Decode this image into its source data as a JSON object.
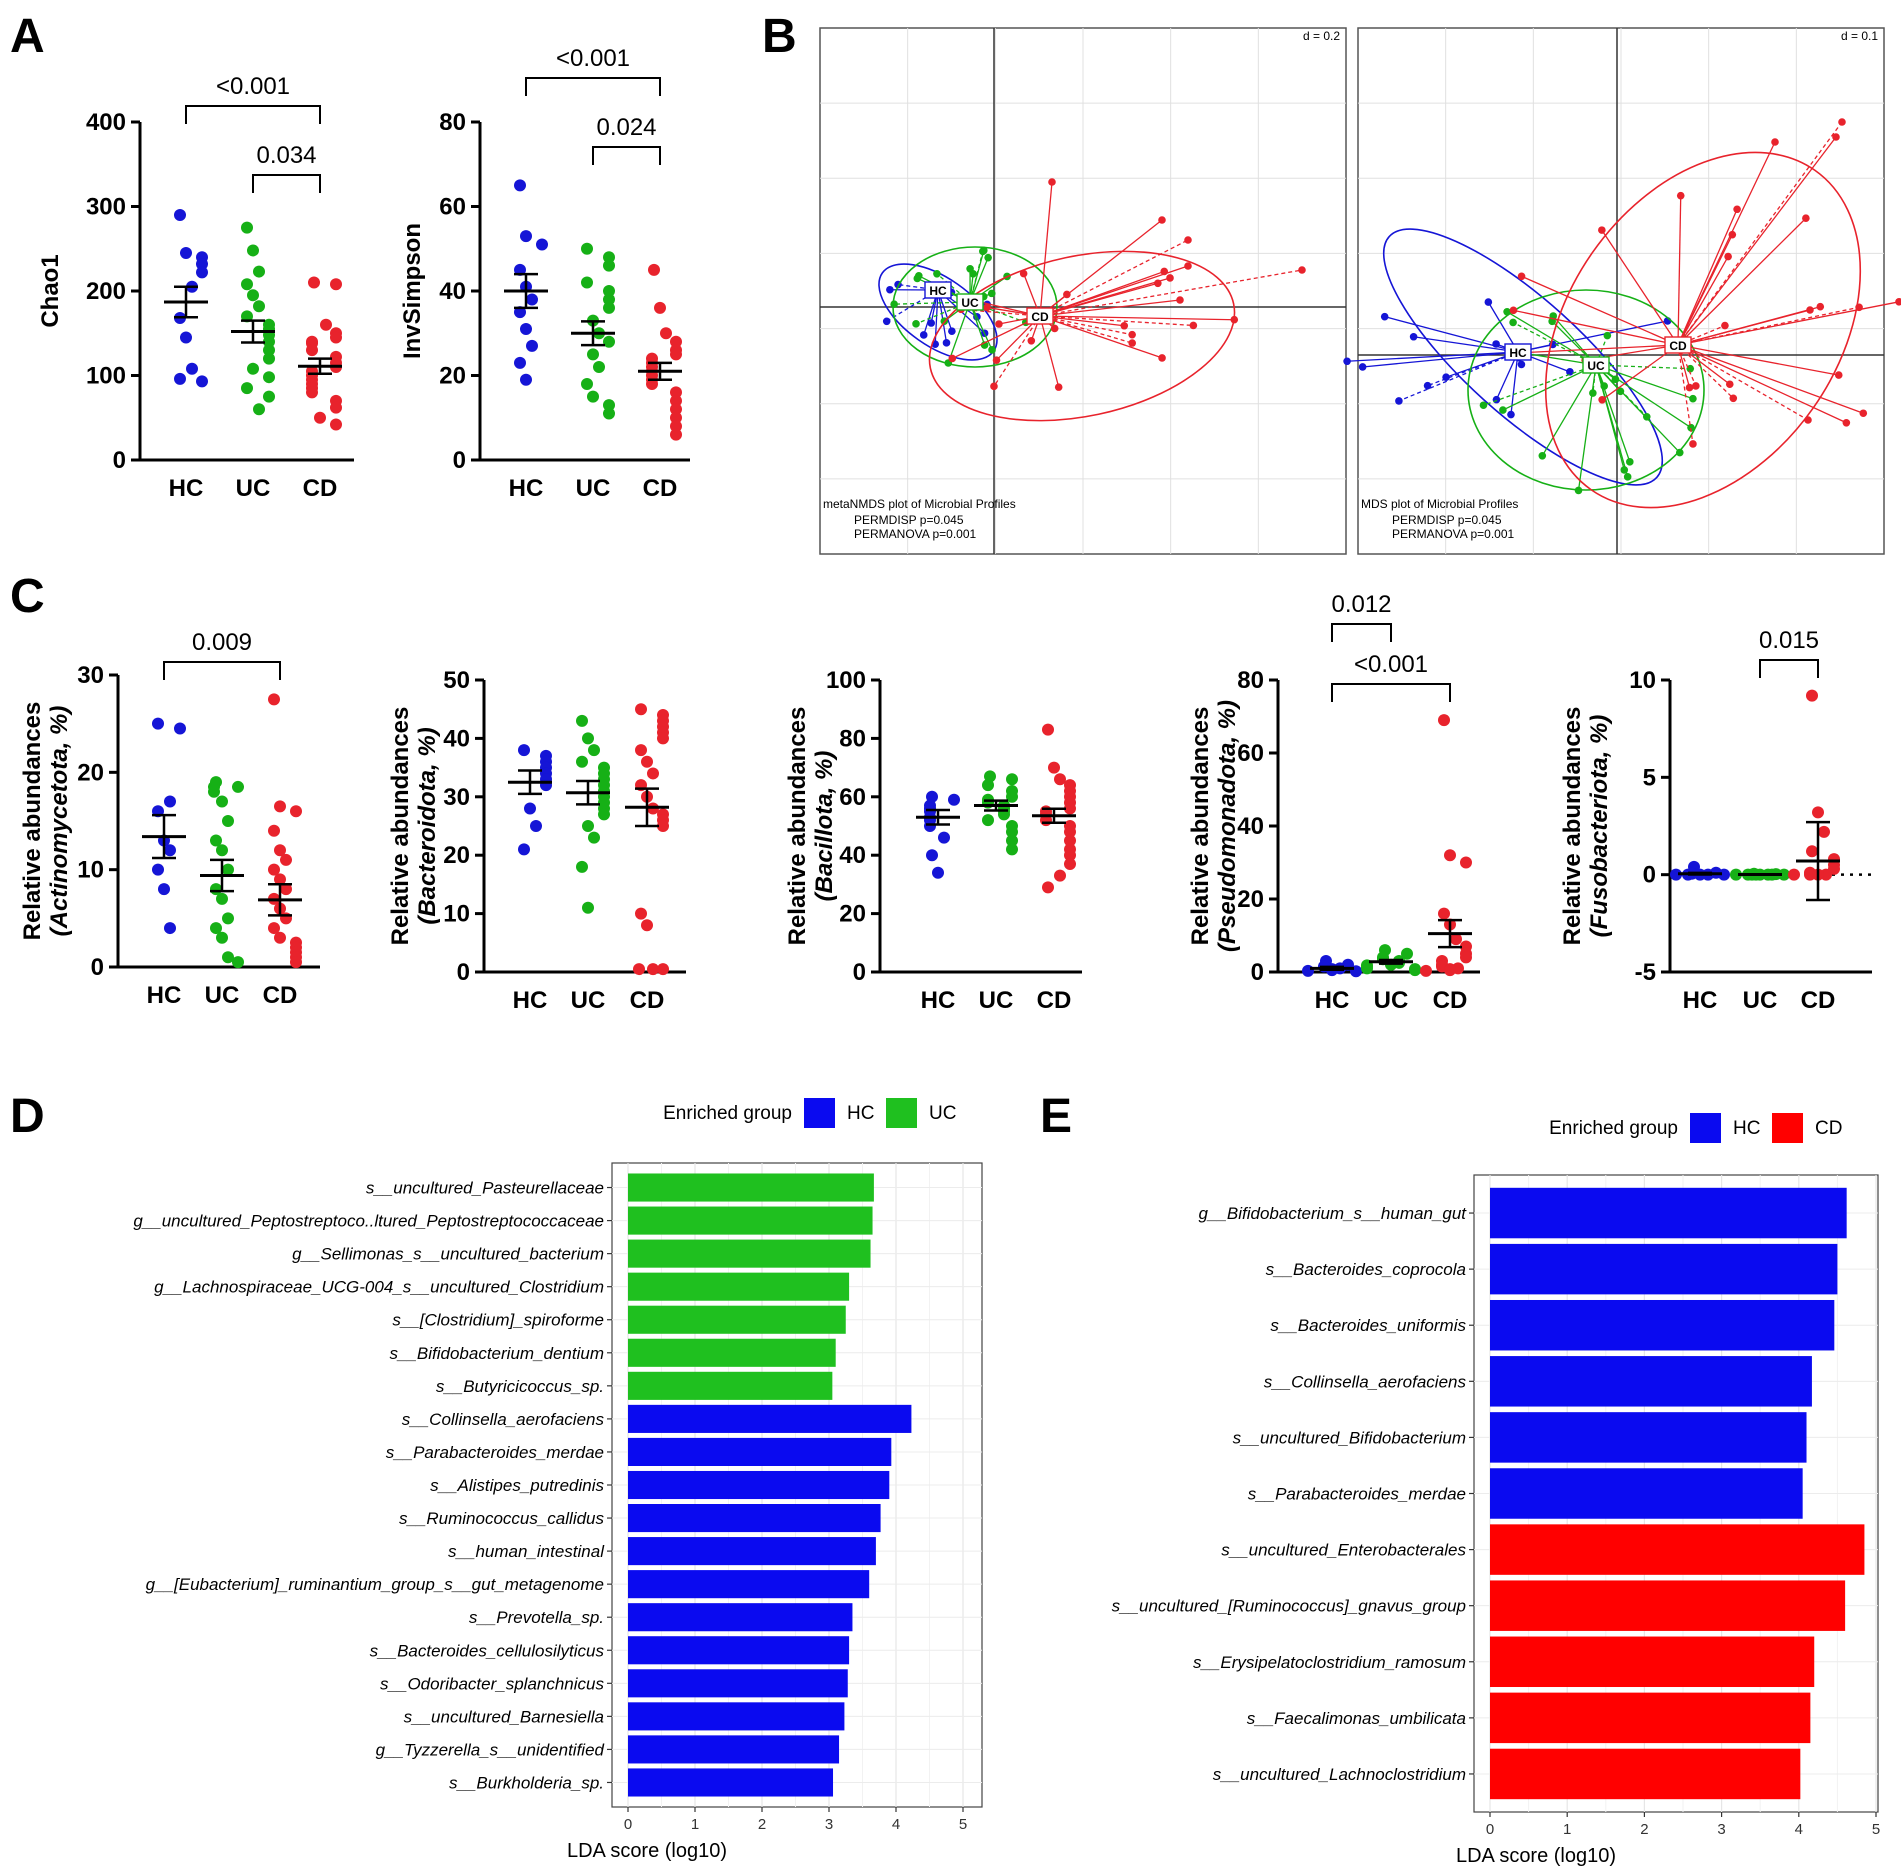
{
  "panels": {
    "A": "A",
    "B": "B",
    "C": "C",
    "D": "D",
    "E": "E"
  },
  "colors": {
    "HC": "#1515d6",
    "UC": "#16b016",
    "CD": "#e8232c",
    "lda_green": "#1fc01f",
    "lda_blue": "#0a0af0",
    "lda_red": "#ff0000"
  },
  "chart_data": [
    {
      "id": "A1",
      "type": "scatter",
      "ylabel": "Chao1",
      "categories": [
        "HC",
        "UC",
        "CD"
      ],
      "ylim": [
        0,
        400
      ],
      "yticks": [
        0,
        100,
        200,
        300,
        400
      ],
      "series": [
        {
          "name": "HC",
          "values": [
            290,
            245,
            240,
            232,
            222,
            205,
            168,
            145,
            108,
            96,
            93
          ],
          "mean": 187,
          "sem": 18
        },
        {
          "name": "UC",
          "values": [
            275,
            248,
            223,
            208,
            195,
            182,
            170,
            160,
            155,
            148,
            140,
            130,
            120,
            108,
            98,
            85,
            75,
            60
          ],
          "mean": 152,
          "sem": 13
        },
        {
          "name": "CD",
          "values": [
            210,
            208,
            160,
            150,
            145,
            140,
            138,
            130,
            122,
            115,
            110,
            105,
            100,
            95,
            90,
            85,
            80,
            70,
            62,
            50,
            42
          ],
          "mean": 111,
          "sem": 9
        }
      ],
      "comparisons": [
        {
          "from": "HC",
          "to": "CD",
          "label": "<0.001"
        },
        {
          "from": "UC",
          "to": "CD",
          "label": "0.034"
        }
      ]
    },
    {
      "id": "A2",
      "type": "scatter",
      "ylabel": "InvSimpson",
      "categories": [
        "HC",
        "UC",
        "CD"
      ],
      "ylim": [
        0,
        80
      ],
      "yticks": [
        0,
        20,
        40,
        60,
        80
      ],
      "series": [
        {
          "name": "HC",
          "values": [
            65,
            53,
            51,
            45,
            41,
            38,
            35,
            31,
            27,
            23,
            19
          ],
          "mean": 40,
          "sem": 4
        },
        {
          "name": "UC",
          "values": [
            50,
            48,
            46,
            42,
            40,
            38,
            36,
            33,
            30,
            28,
            25,
            22,
            18,
            15,
            13,
            11
          ],
          "mean": 30,
          "sem": 2.8
        },
        {
          "name": "CD",
          "values": [
            45,
            36,
            30,
            28,
            26,
            25,
            24,
            23,
            22,
            21,
            20,
            19,
            18,
            16,
            14,
            12,
            10,
            8,
            6
          ],
          "mean": 21,
          "sem": 2
        }
      ],
      "comparisons": [
        {
          "from": "HC",
          "to": "CD",
          "label": "<0.001"
        },
        {
          "from": "UC",
          "to": "CD",
          "label": "0.024"
        }
      ]
    },
    {
      "id": "C1",
      "type": "scatter",
      "ylabel_top": "Relative abundances",
      "ylabel_bottom": "(Actinomycetota, %)",
      "categories": [
        "HC",
        "UC",
        "CD"
      ],
      "ylim": [
        0,
        30
      ],
      "yticks": [
        0,
        10,
        20,
        30
      ],
      "series": [
        {
          "name": "HC",
          "values": [
            25,
            24.5,
            17,
            16,
            13,
            12,
            10,
            8,
            4
          ],
          "mean": 13.4,
          "sem": 2.2
        },
        {
          "name": "UC",
          "values": [
            19,
            18.5,
            18.5,
            18,
            17,
            15,
            13,
            12,
            10,
            8,
            7,
            5,
            4,
            3,
            1,
            0.5
          ],
          "mean": 9.4,
          "sem": 1.6
        },
        {
          "name": "CD",
          "values": [
            27.5,
            16.5,
            16,
            14,
            12,
            11,
            10,
            9,
            8,
            7,
            6,
            5,
            4,
            3,
            2.5,
            2,
            1.5,
            1,
            0.5
          ],
          "mean": 6.9,
          "sem": 1.6
        }
      ],
      "comparisons": [
        {
          "from": "HC",
          "to": "CD",
          "label": "0.009"
        }
      ]
    },
    {
      "id": "C2",
      "type": "scatter",
      "ylabel_top": "Relative abundances",
      "ylabel_bottom": "(Bacteroidota, %)",
      "categories": [
        "HC",
        "UC",
        "CD"
      ],
      "ylim": [
        0,
        50
      ],
      "yticks": [
        0,
        10,
        20,
        30,
        40,
        50
      ],
      "series": [
        {
          "name": "HC",
          "values": [
            38,
            37,
            36,
            35,
            34,
            33,
            32,
            28,
            25,
            21
          ],
          "mean": 32.5,
          "sem": 2
        },
        {
          "name": "UC",
          "values": [
            43,
            40,
            38,
            36,
            35,
            34,
            33,
            32,
            31,
            30,
            29,
            28,
            27,
            25,
            23,
            18,
            11
          ],
          "mean": 30.7,
          "sem": 2
        },
        {
          "name": "CD",
          "values": [
            45,
            44,
            43,
            42,
            41,
            40,
            38,
            36,
            34,
            32,
            30,
            28,
            27,
            26,
            25,
            10,
            8,
            0.5,
            0.5,
            0.5
          ],
          "mean": 28.2,
          "sem": 3.2
        }
      ],
      "comparisons": []
    },
    {
      "id": "C3",
      "type": "scatter",
      "ylabel_top": "Relative abundances",
      "ylabel_bottom": "(Bacillota, %)",
      "categories": [
        "HC",
        "UC",
        "CD"
      ],
      "ylim": [
        0,
        100
      ],
      "yticks": [
        0,
        20,
        40,
        60,
        80,
        100
      ],
      "series": [
        {
          "name": "HC",
          "values": [
            60,
            59,
            57,
            56,
            55,
            53,
            52,
            50,
            46,
            40,
            34
          ],
          "mean": 53,
          "sem": 2.5
        },
        {
          "name": "UC",
          "values": [
            67,
            66,
            64,
            62,
            60,
            59,
            58,
            57,
            56,
            55,
            54,
            52,
            50,
            48,
            45,
            42
          ],
          "mean": 57,
          "sem": 1.7
        },
        {
          "name": "CD",
          "values": [
            83,
            70,
            66,
            64,
            62,
            60,
            58,
            56,
            55,
            54,
            52,
            50,
            48,
            45,
            42,
            40,
            37,
            33,
            29
          ],
          "mean": 53.5,
          "sem": 2.4
        }
      ],
      "comparisons": []
    },
    {
      "id": "C4",
      "type": "scatter",
      "ylabel_top": "Relative abundances",
      "ylabel_bottom": "(Pseudomonadota, %)",
      "categories": [
        "HC",
        "UC",
        "CD"
      ],
      "ylim": [
        0,
        80
      ],
      "yticks": [
        0,
        20,
        40,
        60,
        80
      ],
      "series": [
        {
          "name": "HC",
          "values": [
            3,
            2,
            1.5,
            1,
            0.8,
            0.5,
            0.3,
            0.2
          ],
          "mean": 1,
          "sem": 0.4
        },
        {
          "name": "UC",
          "values": [
            6,
            5,
            4,
            3.5,
            3,
            2.5,
            2,
            1.8,
            1.5,
            1,
            0.8,
            0.5
          ],
          "mean": 2.8,
          "sem": 0.5
        },
        {
          "name": "CD",
          "values": [
            69,
            32,
            30,
            16,
            13,
            9,
            7,
            5,
            4,
            3,
            2,
            1.5,
            1,
            0.8,
            0.5,
            0.3
          ],
          "mean": 10.5,
          "sem": 3.7
        }
      ],
      "comparisons": [
        {
          "from": "HC",
          "to": "UC",
          "label": "0.012"
        },
        {
          "from": "HC",
          "to": "CD",
          "label": "<0.001"
        }
      ]
    },
    {
      "id": "C5",
      "type": "scatter",
      "ylabel_top": "Relative abundances",
      "ylabel_bottom": "(Fusobacteriota, %)",
      "categories": [
        "HC",
        "UC",
        "CD"
      ],
      "ylim": [
        -5,
        10
      ],
      "yticks": [
        -5,
        0,
        5,
        10
      ],
      "series": [
        {
          "name": "HC",
          "values": [
            0.4,
            0.1,
            0.05,
            0,
            0,
            0,
            0,
            0
          ],
          "mean": 0.05,
          "sem": 0.04
        },
        {
          "name": "UC",
          "values": [
            0.05,
            0.03,
            0,
            0,
            0,
            0,
            0,
            0,
            0,
            0
          ],
          "mean": 0.01,
          "sem": 0.005
        },
        {
          "name": "CD",
          "values": [
            9.2,
            3.2,
            2.2,
            1.2,
            0.8,
            0.5,
            0.3,
            0.1,
            0,
            0,
            0,
            0
          ],
          "mean": 0.7,
          "sem": 2.0
        }
      ],
      "comparisons": [
        {
          "from": "UC",
          "to": "CD",
          "label": "0.015"
        }
      ]
    },
    {
      "id": "B1",
      "type": "scatter",
      "label_plot": "metaNMDS plot of Microbial Profiles",
      "permdisp": "PERMDISP     p=0.045",
      "permanova": "PERMANOVA  p=0.001",
      "scale": "d = 0.2",
      "centroid_labels": [
        "HC",
        "UC",
        "CD"
      ]
    },
    {
      "id": "B2",
      "type": "scatter",
      "label_plot": "MDS plot of Microbial Profiles",
      "permdisp": "PERMDISP     p=0.045",
      "permanova": "PERMANOVA  p=0.001",
      "scale": "d = 0.1",
      "centroid_labels": [
        "HC",
        "UC",
        "CD"
      ]
    },
    {
      "id": "D",
      "type": "bar",
      "xlabel": "LDA score (log10)",
      "xlim": [
        0,
        5
      ],
      "xticks": [
        0,
        1,
        2,
        3,
        4,
        5
      ],
      "legend_title": "Enriched group",
      "legend": [
        "HC",
        "UC"
      ],
      "bars": [
        {
          "label": "s__uncultured_Pasteurellaceae",
          "value": 3.67,
          "group": "UC"
        },
        {
          "label": "g__uncultured_Peptostreptoco..ltured_Peptostreptococcaceae",
          "value": 3.65,
          "group": "UC"
        },
        {
          "label": "g__Sellimonas_s__uncultured_bacterium",
          "value": 3.62,
          "group": "UC"
        },
        {
          "label": "g__Lachnospiraceae_UCG-004_s__uncultured_Clostridium",
          "value": 3.3,
          "group": "UC"
        },
        {
          "label": "s__[Clostridium]_spiroforme",
          "value": 3.25,
          "group": "UC"
        },
        {
          "label": "s__Bifidobacterium_dentium",
          "value": 3.1,
          "group": "UC"
        },
        {
          "label": "s__Butyricicoccus_sp.",
          "value": 3.05,
          "group": "UC"
        },
        {
          "label": "s__Collinsella_aerofaciens",
          "value": 4.23,
          "group": "HC"
        },
        {
          "label": "s__Parabacteroides_merdae",
          "value": 3.93,
          "group": "HC"
        },
        {
          "label": "s__Alistipes_putredinis",
          "value": 3.9,
          "group": "HC"
        },
        {
          "label": "s__Ruminococcus_callidus",
          "value": 3.77,
          "group": "HC"
        },
        {
          "label": "s__human_intestinal",
          "value": 3.7,
          "group": "HC"
        },
        {
          "label": "g__[Eubacterium]_ruminantium_group_s__gut_metagenome",
          "value": 3.6,
          "group": "HC"
        },
        {
          "label": "s__Prevotella_sp.",
          "value": 3.35,
          "group": "HC"
        },
        {
          "label": "s__Bacteroides_cellulosilyticus",
          "value": 3.3,
          "group": "HC"
        },
        {
          "label": "s__Odoribacter_splanchnicus",
          "value": 3.28,
          "group": "HC"
        },
        {
          "label": "s__uncultured_Barnesiella",
          "value": 3.23,
          "group": "HC"
        },
        {
          "label": "g__Tyzzerella_s__unidentified",
          "value": 3.15,
          "group": "HC"
        },
        {
          "label": "s__Burkholderia_sp.",
          "value": 3.06,
          "group": "HC"
        }
      ]
    },
    {
      "id": "E",
      "type": "bar",
      "xlabel": "LDA score (log10)",
      "xlim": [
        0,
        5
      ],
      "xticks": [
        0,
        1,
        2,
        3,
        4,
        5
      ],
      "legend_title": "Enriched group",
      "legend": [
        "HC",
        "CD"
      ],
      "bars": [
        {
          "label": "g__Bifidobacterium_s__human_gut",
          "value": 4.62,
          "group": "HC"
        },
        {
          "label": "s__Bacteroides_coprocola",
          "value": 4.5,
          "group": "HC"
        },
        {
          "label": "s__Bacteroides_uniformis",
          "value": 4.46,
          "group": "HC"
        },
        {
          "label": "s__Collinsella_aerofaciens",
          "value": 4.17,
          "group": "HC"
        },
        {
          "label": "s__uncultured_Bifidobacterium",
          "value": 4.1,
          "group": "HC"
        },
        {
          "label": "s__Parabacteroides_merdae",
          "value": 4.05,
          "group": "HC"
        },
        {
          "label": "s__uncultured_Enterobacterales",
          "value": 4.85,
          "group": "CD"
        },
        {
          "label": "s__uncultured_[Ruminococcus]_gnavus_group",
          "value": 4.6,
          "group": "CD"
        },
        {
          "label": "s__Erysipelatoclostridium_ramosum",
          "value": 4.2,
          "group": "CD"
        },
        {
          "label": "s__Faecalimonas_umbilicata",
          "value": 4.15,
          "group": "CD"
        },
        {
          "label": "s__uncultured_Lachnoclostridium",
          "value": 4.02,
          "group": "CD"
        }
      ]
    }
  ]
}
